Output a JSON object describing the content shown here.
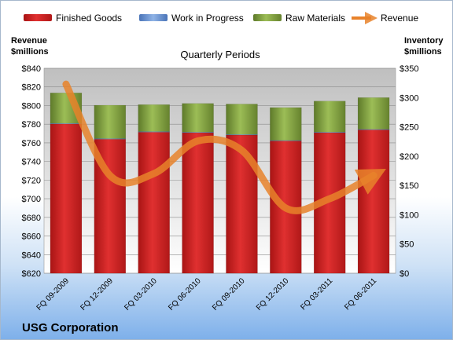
{
  "chart_data": {
    "type": "bar",
    "subtitle": "Quarterly Periods",
    "company": "USG Corporation",
    "left_axis_label": [
      "Revenue",
      "$millions"
    ],
    "right_axis_label": [
      "Inventory",
      "$millions"
    ],
    "categories": [
      "FQ 09-2009",
      "FQ 12-2009",
      "FQ 03-2010",
      "FQ 06-2010",
      "FQ 09-2010",
      "FQ 12-2010",
      "FQ 03-2011",
      "FQ 06-2011"
    ],
    "left_axis": {
      "min": 620,
      "max": 840,
      "step": 20,
      "format_prefix": "$"
    },
    "right_axis": {
      "min": 0,
      "max": 350,
      "step": 50,
      "format_prefix": "$"
    },
    "series": [
      {
        "name": "Finished Goods",
        "axis": "right",
        "kind": "stacked-bar",
        "color": "#d42a2a",
        "values": [
          255,
          229,
          241,
          240,
          236,
          226,
          240,
          245
        ]
      },
      {
        "name": "Work in Progress",
        "axis": "right",
        "kind": "stacked-bar",
        "color": "#6a95d0",
        "values": [
          1,
          1,
          1,
          1,
          1,
          1,
          1,
          1
        ]
      },
      {
        "name": "Raw Materials",
        "axis": "right",
        "kind": "stacked-bar",
        "color": "#8aa84c",
        "values": [
          52,
          57,
          46,
          49,
          52,
          56,
          53,
          54
        ]
      },
      {
        "name": "Revenue",
        "axis": "left",
        "kind": "line",
        "color": "#e8822a",
        "values": [
          823,
          725,
          727,
          762,
          752,
          690,
          700,
          725
        ]
      }
    ],
    "grid": true,
    "legend_position": "top"
  }
}
